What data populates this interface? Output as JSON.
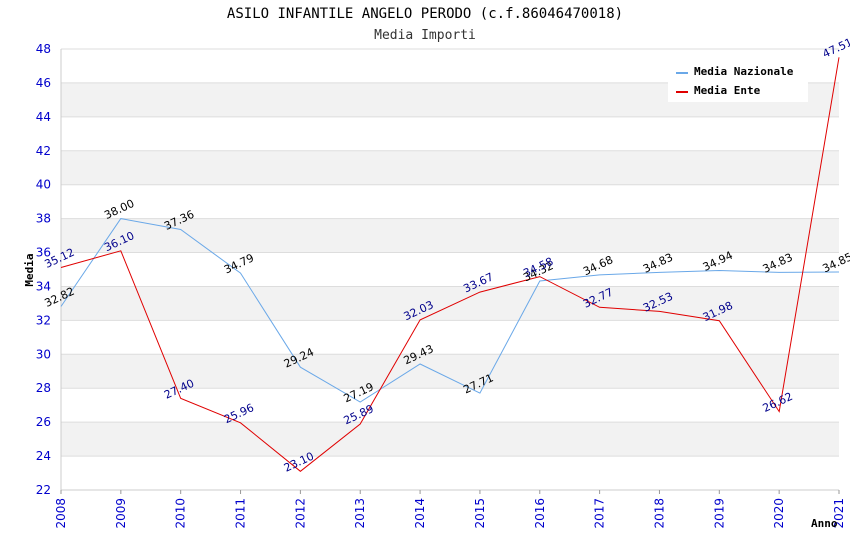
{
  "chart_data": {
    "type": "line",
    "title": "ASILO INFANTILE ANGELO PERODO (c.f.86046470018)",
    "subtitle": "Media Importi",
    "xlabel": "Anno",
    "ylabel": "Media",
    "ylim": [
      22,
      48
    ],
    "yticks": [
      "22",
      "24",
      "26",
      "28",
      "30",
      "32",
      "34",
      "36",
      "38",
      "40",
      "42",
      "44",
      "46",
      "48"
    ],
    "categories": [
      "2008",
      "2009",
      "2010",
      "2011",
      "2012",
      "2013",
      "2014",
      "2015",
      "2016",
      "2017",
      "2018",
      "2019",
      "2020",
      "2021"
    ],
    "legend_position": "top-right",
    "series": [
      {
        "name": "Media Nazionale",
        "color": "#6aa8e8",
        "values": [
          32.82,
          38.0,
          37.36,
          34.79,
          29.24,
          27.19,
          29.43,
          27.71,
          34.32,
          34.68,
          34.83,
          34.94,
          34.83,
          34.85
        ],
        "labels": [
          "32.82",
          "38.00",
          "37.36",
          "34.79",
          "29.24",
          "27.19",
          "29.43",
          "27.71",
          "34.32",
          "34.68",
          "34.83",
          "34.94",
          "34.83",
          "34.85"
        ]
      },
      {
        "name": "Media Ente",
        "color": "#e00000",
        "values": [
          35.12,
          36.1,
          27.4,
          25.96,
          23.1,
          25.89,
          32.03,
          33.67,
          34.58,
          32.77,
          32.53,
          31.98,
          26.62,
          47.51
        ],
        "labels": [
          "35.12",
          "36.10",
          "27.40",
          "25.96",
          "23.10",
          "25.89",
          "32.03",
          "33.67",
          "34.58",
          "32.77",
          "32.53",
          "31.98",
          "26.62",
          "47.51"
        ]
      }
    ]
  }
}
